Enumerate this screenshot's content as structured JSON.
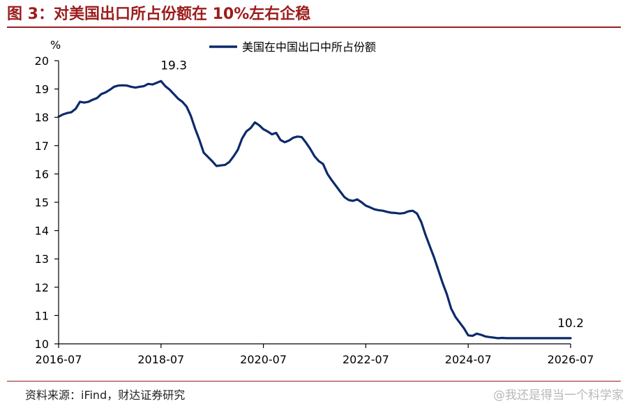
{
  "header": {
    "title": "图 3：对美国出口所占份额在 10%左右企稳"
  },
  "footer": {
    "source": "资料来源：iFind，财达证券研究",
    "watermark": "@我还是得当一个科学家"
  },
  "colors": {
    "title": "#9b1c1c",
    "series": "#0c2a6b"
  },
  "chart_data": {
    "type": "line",
    "title": "",
    "xlabel": "",
    "ylabel": "%",
    "ylim": [
      10,
      20
    ],
    "yticks": [
      10,
      11,
      12,
      13,
      14,
      15,
      16,
      17,
      18,
      19,
      20
    ],
    "xlim": [
      "2016-07",
      "2026-07"
    ],
    "xticks": [
      "2016-07",
      "2018-07",
      "2020-07",
      "2022-07",
      "2024-07",
      "2026-07"
    ],
    "legend": "top-center",
    "grid": false,
    "annotations": [
      {
        "text": "19.3",
        "x": "2018-10",
        "y": 19.3
      },
      {
        "text": "10.2",
        "x": "2026-07",
        "y": 10.2
      }
    ],
    "series": [
      {
        "name": "美国在中国出口中所占份额",
        "x": [
          "2016-07",
          "2016-08",
          "2016-09",
          "2016-10",
          "2016-11",
          "2016-12",
          "2017-01",
          "2017-02",
          "2017-03",
          "2017-04",
          "2017-05",
          "2017-06",
          "2017-07",
          "2017-08",
          "2017-09",
          "2017-10",
          "2017-11",
          "2017-12",
          "2018-01",
          "2018-02",
          "2018-03",
          "2018-04",
          "2018-05",
          "2018-06",
          "2018-07",
          "2018-08",
          "2018-09",
          "2018-10",
          "2018-11",
          "2018-12",
          "2019-01",
          "2019-02",
          "2019-03",
          "2019-04",
          "2019-05",
          "2019-06",
          "2019-07",
          "2019-08",
          "2019-09",
          "2019-10",
          "2019-11",
          "2019-12",
          "2020-01",
          "2020-02",
          "2020-03",
          "2020-04",
          "2020-05",
          "2020-06",
          "2020-07",
          "2020-08",
          "2020-09",
          "2020-10",
          "2020-11",
          "2020-12",
          "2021-01",
          "2021-02",
          "2021-03",
          "2021-04",
          "2021-05",
          "2021-06",
          "2021-07",
          "2021-08",
          "2021-09",
          "2021-10",
          "2021-11",
          "2021-12",
          "2022-01",
          "2022-02",
          "2022-03",
          "2022-04",
          "2022-05",
          "2022-06",
          "2022-07",
          "2022-08",
          "2022-09",
          "2022-10",
          "2022-11",
          "2022-12",
          "2023-01",
          "2023-02",
          "2023-03",
          "2023-04",
          "2023-05",
          "2023-06",
          "2023-07",
          "2023-08",
          "2023-09",
          "2023-10",
          "2023-11",
          "2023-12",
          "2024-01",
          "2024-02",
          "2024-03",
          "2024-04",
          "2024-05",
          "2024-06",
          "2024-07",
          "2024-08",
          "2024-09",
          "2024-10",
          "2024-11",
          "2024-12",
          "2025-01",
          "2025-02",
          "2025-03",
          "2025-04",
          "2025-05",
          "2025-06",
          "2025-07",
          "2025-08",
          "2025-09",
          "2025-10",
          "2025-11",
          "2025-12",
          "2026-01",
          "2026-02",
          "2026-03",
          "2026-04",
          "2026-05",
          "2026-06",
          "2026-07"
        ],
        "values": [
          18.02,
          18.1,
          18.15,
          18.18,
          18.3,
          18.55,
          18.52,
          18.55,
          18.62,
          18.68,
          18.82,
          18.88,
          18.97,
          19.08,
          19.12,
          19.13,
          19.12,
          19.08,
          19.05,
          19.08,
          19.1,
          19.18,
          19.16,
          19.22,
          19.28,
          19.1,
          18.98,
          18.82,
          18.66,
          18.55,
          18.38,
          18.05,
          17.6,
          17.2,
          16.75,
          16.6,
          16.45,
          16.28,
          16.3,
          16.32,
          16.42,
          16.62,
          16.85,
          17.25,
          17.5,
          17.62,
          17.82,
          17.72,
          17.58,
          17.5,
          17.4,
          17.45,
          17.2,
          17.12,
          17.18,
          17.28,
          17.32,
          17.3,
          17.1,
          16.88,
          16.62,
          16.45,
          16.35,
          16.0,
          15.78,
          15.58,
          15.38,
          15.18,
          15.08,
          15.05,
          15.1,
          15.0,
          14.88,
          14.82,
          14.75,
          14.72,
          14.7,
          14.66,
          14.63,
          14.62,
          14.6,
          14.62,
          14.68,
          14.7,
          14.6,
          14.3,
          13.85,
          13.45,
          13.05,
          12.6,
          12.15,
          11.75,
          11.25,
          10.95,
          10.75,
          10.55,
          10.3,
          10.28,
          10.36,
          10.32,
          10.26,
          10.24,
          10.22,
          10.2,
          10.21,
          10.2,
          10.2,
          10.2,
          10.2,
          10.2,
          10.2,
          10.2,
          10.2,
          10.2,
          10.2,
          10.2,
          10.2,
          10.2,
          10.2,
          10.2,
          10.2
        ]
      }
    ]
  }
}
